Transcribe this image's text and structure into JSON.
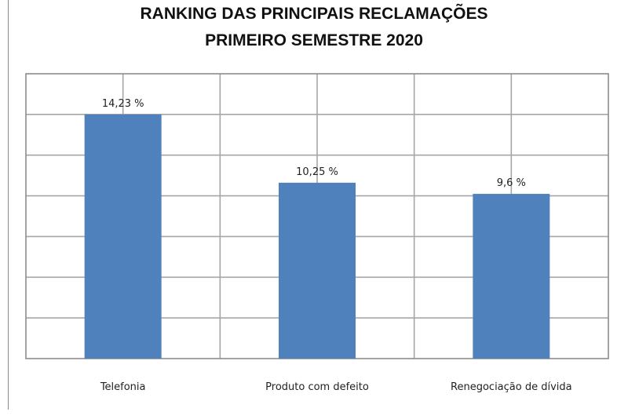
{
  "chart_data": {
    "type": "bar",
    "title": "RANKING DAS PRINCIPAIS RECLAMAÇÕES",
    "subtitle": "PRIMEIRO SEMESTRE 2020",
    "categories": [
      "Telefonia",
      "Produto com defeito",
      "Renegociação de dívida"
    ],
    "values": [
      14.23,
      10.25,
      9.6
    ],
    "data_labels": [
      "14,23 %",
      "10,25 %",
      "9,6 %"
    ],
    "xlabel": "",
    "ylabel": "",
    "ylim": [
      0,
      16.6
    ],
    "grid": true,
    "legend": "none",
    "colors": {
      "bar": "#4f81bd",
      "grid": "#a6a6a6",
      "plot_border": "#8c8c8c"
    }
  }
}
